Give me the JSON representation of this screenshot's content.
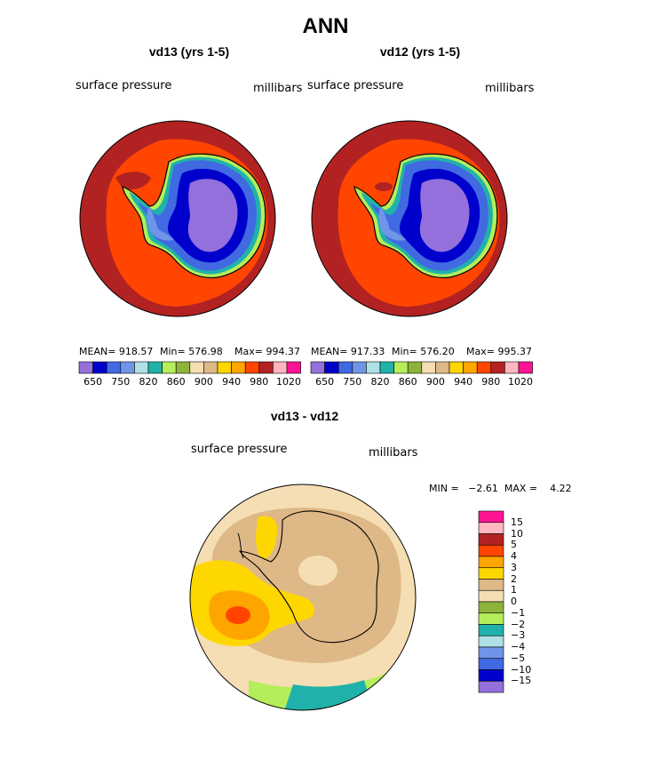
{
  "title": "ANN",
  "panels": [
    {
      "title": "vd13 (yrs 1-5)",
      "left_label": "surface pressure",
      "right_label": "millibars",
      "stats": {
        "mean": "MEAN= 918.57",
        "min": "Min= 576.98",
        "max": "Max= 994.37"
      }
    },
    {
      "title": "vd12 (yrs 1-5)",
      "left_label": "surface pressure",
      "right_label": "millibars",
      "stats": {
        "mean": "MEAN= 917.33",
        "min": "Min= 576.20",
        "max": "Max= 995.37"
      }
    }
  ],
  "top_colorbar": {
    "colors": [
      "#9370db",
      "#0000cd",
      "#4169e1",
      "#6f94e8",
      "#afe0e6",
      "#20b2aa",
      "#b4ee5a",
      "#8db33a",
      "#f5deb3",
      "#deb887",
      "#ffd700",
      "#ffa500",
      "#ff4500",
      "#b22222",
      "#ffb6c1",
      "#ff1493"
    ],
    "tick_labels": [
      "650",
      "750",
      "820",
      "860",
      "900",
      "940",
      "980",
      "1020"
    ]
  },
  "diff_panel": {
    "title": "vd13 - vd12",
    "left_label": "surface pressure",
    "right_label": "millibars",
    "min_max": "MIN =   −2.61  MAX =    4.22"
  },
  "diff_colorbar": {
    "colors_top_to_bottom": [
      "#ff1493",
      "#ffb6c1",
      "#b22222",
      "#ff4500",
      "#ffa500",
      "#ffd700",
      "#deb887",
      "#f5deb3",
      "#8db33a",
      "#b4ee5a",
      "#20b2aa",
      "#afe0e6",
      "#6f94e8",
      "#4169e1",
      "#0000cd",
      "#9370db"
    ],
    "tick_labels_top_to_bottom": [
      "15",
      "10",
      "5",
      "4",
      "3",
      "2",
      "1",
      "0",
      "−1",
      "−2",
      "−3",
      "−4",
      "−5",
      "−10",
      "−15"
    ]
  }
}
